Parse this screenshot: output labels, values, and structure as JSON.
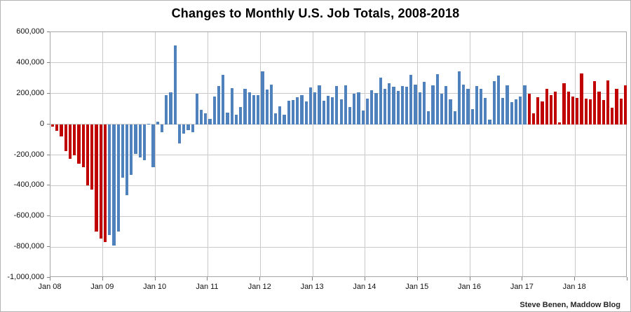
{
  "header": {
    "title": "Changes to Monthly U.S. Job Totals, 2008-2018"
  },
  "footer": {
    "credit": "Steve Benen, Maddow Blog"
  },
  "colors": {
    "bar_blue": "#4f81bd",
    "bar_red": "#c00000",
    "gridline": "#c9c9c9",
    "plot_border": "#a6a6a6",
    "background": "#ffffff"
  },
  "chart_data": {
    "type": "bar",
    "title": "Changes to Monthly U.S. Job Totals, 2008-2018",
    "xlabel": "",
    "ylabel": "",
    "unit": "jobs (monthly change, thousands)",
    "ylim": [
      -1000000,
      600000
    ],
    "y_tick_step": 200000,
    "y_tick_labels": [
      "600,000",
      "400,000",
      "200,000",
      "0",
      "-200,000",
      "-400,000",
      "-600,000",
      "-800,000",
      "-1,000,000"
    ],
    "x_tick_labels": [
      "Jan 08",
      "Jan 09",
      "Jan 10",
      "Jan 11",
      "Jan 12",
      "Jan 13",
      "Jan 14",
      "Jan 15",
      "Jan 16",
      "Jan 17",
      "Jan 18"
    ],
    "grid": true,
    "legend": "none",
    "start_month": "2008-01",
    "end_month": "2018-12",
    "color_segments": [
      {
        "range": "Jan 2008 - Jan 2009",
        "first_index": 0,
        "last_index": 12,
        "color": "#c00000"
      },
      {
        "range": "Feb 2009 - Jan 2017",
        "first_index": 13,
        "last_index": 108,
        "color": "#4f81bd"
      },
      {
        "range": "Feb 2017 - Dec 2018",
        "first_index": 109,
        "last_index": 131,
        "color": "#c00000"
      }
    ],
    "values_thousands_by_year": {
      "2008": [
        -15,
        -45,
        -80,
        -177,
        -223,
        -200,
        -257,
        -278,
        -397,
        -427,
        -697,
        -745
      ],
      "2009": [
        -768,
        -720,
        -790,
        -700,
        -350,
        -460,
        -330,
        -195,
        -215,
        -235,
        5,
        -280
      ],
      "2010": [
        18,
        -50,
        190,
        210,
        515,
        -125,
        -60,
        -40,
        -50,
        200,
        95,
        73
      ],
      "2011": [
        37,
        180,
        250,
        320,
        78,
        234,
        63,
        111,
        230,
        207,
        192,
        192
      ],
      "2012": [
        343,
        225,
        260,
        70,
        116,
        63,
        155,
        160,
        175,
        190,
        150,
        240
      ],
      "2013": [
        207,
        255,
        154,
        184,
        177,
        249,
        161,
        252,
        113,
        199,
        209,
        88
      ],
      "2014": [
        169,
        222,
        203,
        304,
        229,
        267,
        243,
        215,
        250,
        243,
        321,
        256
      ],
      "2015": [
        209,
        275,
        85,
        255,
        325,
        200,
        249,
        161,
        83,
        346,
        260,
        229
      ],
      "2016": [
        98,
        249,
        229,
        173,
        32,
        283,
        316,
        173,
        252,
        146,
        164,
        179
      ],
      "2017": [
        255,
        200,
        70,
        176,
        150,
        232,
        191,
        211,
        14,
        267,
        214,
        181
      ],
      "2018": [
        172,
        330,
        169,
        164,
        283,
        211,
        157,
        287,
        108,
        229,
        169,
        252
      ]
    }
  }
}
